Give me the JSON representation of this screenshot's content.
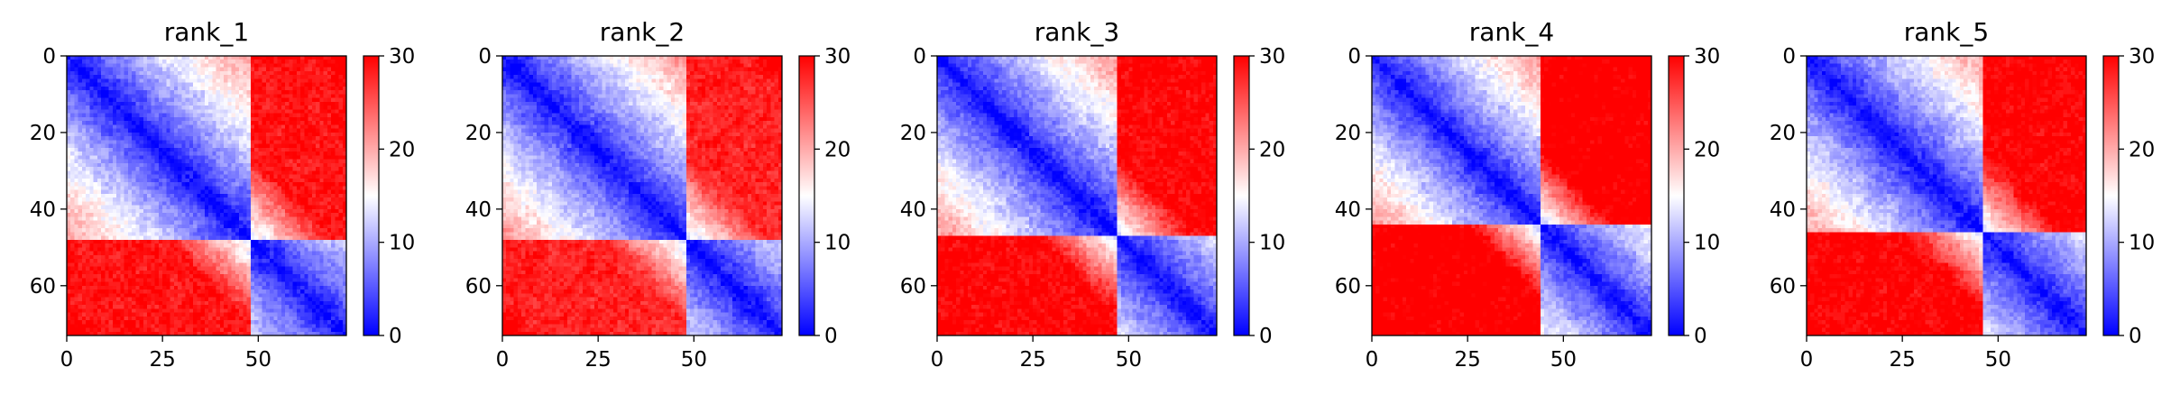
{
  "chart_data": [
    {
      "type": "heatmap",
      "title": "rank_1",
      "rows": 73,
      "cols": 73,
      "x_ticks": [
        0,
        25,
        50
      ],
      "y_ticks": [
        0,
        20,
        40,
        60
      ],
      "color_scale": {
        "colormap": "bwr",
        "vmin": 0,
        "vmax": 30,
        "ticks": [
          0,
          10,
          20,
          30
        ],
        "low_color": "#0000ff",
        "mid_color": "#ffffff",
        "high_color": "#ff0000"
      },
      "structure": {
        "domain_boundary": 48,
        "corner_distance": 29,
        "band_slope": 1.0,
        "mid_distance": 12,
        "domain_fade": 22
      }
    },
    {
      "type": "heatmap",
      "title": "rank_2",
      "rows": 73,
      "cols": 73,
      "x_ticks": [
        0,
        25,
        50
      ],
      "y_ticks": [
        0,
        20,
        40,
        60
      ],
      "color_scale": {
        "colormap": "bwr",
        "vmin": 0,
        "vmax": 30,
        "ticks": [
          0,
          10,
          20,
          30
        ],
        "low_color": "#0000ff",
        "mid_color": "#ffffff",
        "high_color": "#ff0000"
      },
      "structure": {
        "domain_boundary": 48,
        "corner_distance": 28,
        "band_slope": 1.0,
        "mid_distance": 12,
        "domain_fade": 22
      }
    },
    {
      "type": "heatmap",
      "title": "rank_3",
      "rows": 73,
      "cols": 73,
      "x_ticks": [
        0,
        25,
        50
      ],
      "y_ticks": [
        0,
        20,
        40,
        60
      ],
      "color_scale": {
        "colormap": "bwr",
        "vmin": 0,
        "vmax": 30,
        "ticks": [
          0,
          10,
          20,
          30
        ],
        "low_color": "#0000ff",
        "mid_color": "#ffffff",
        "high_color": "#ff0000"
      },
      "structure": {
        "domain_boundary": 47,
        "corner_distance": 30,
        "band_slope": 1.0,
        "mid_distance": 12,
        "domain_fade": 21
      }
    },
    {
      "type": "heatmap",
      "title": "rank_4",
      "rows": 73,
      "cols": 73,
      "x_ticks": [
        0,
        25,
        50
      ],
      "y_ticks": [
        0,
        20,
        40,
        60
      ],
      "color_scale": {
        "colormap": "bwr",
        "vmin": 0,
        "vmax": 30,
        "ticks": [
          0,
          10,
          20,
          30
        ],
        "low_color": "#0000ff",
        "mid_color": "#ffffff",
        "high_color": "#ff0000"
      },
      "structure": {
        "domain_boundary": 44,
        "corner_distance": 31,
        "band_slope": 1.05,
        "mid_distance": 11,
        "domain_fade": 20
      }
    },
    {
      "type": "heatmap",
      "title": "rank_5",
      "rows": 73,
      "cols": 73,
      "x_ticks": [
        0,
        25,
        50
      ],
      "y_ticks": [
        0,
        20,
        40,
        60
      ],
      "color_scale": {
        "colormap": "bwr",
        "vmin": 0,
        "vmax": 30,
        "ticks": [
          0,
          10,
          20,
          30
        ],
        "low_color": "#0000ff",
        "mid_color": "#ffffff",
        "high_color": "#ff0000"
      },
      "structure": {
        "domain_boundary": 46,
        "corner_distance": 30,
        "band_slope": 1.0,
        "mid_distance": 12,
        "domain_fade": 21
      }
    }
  ]
}
